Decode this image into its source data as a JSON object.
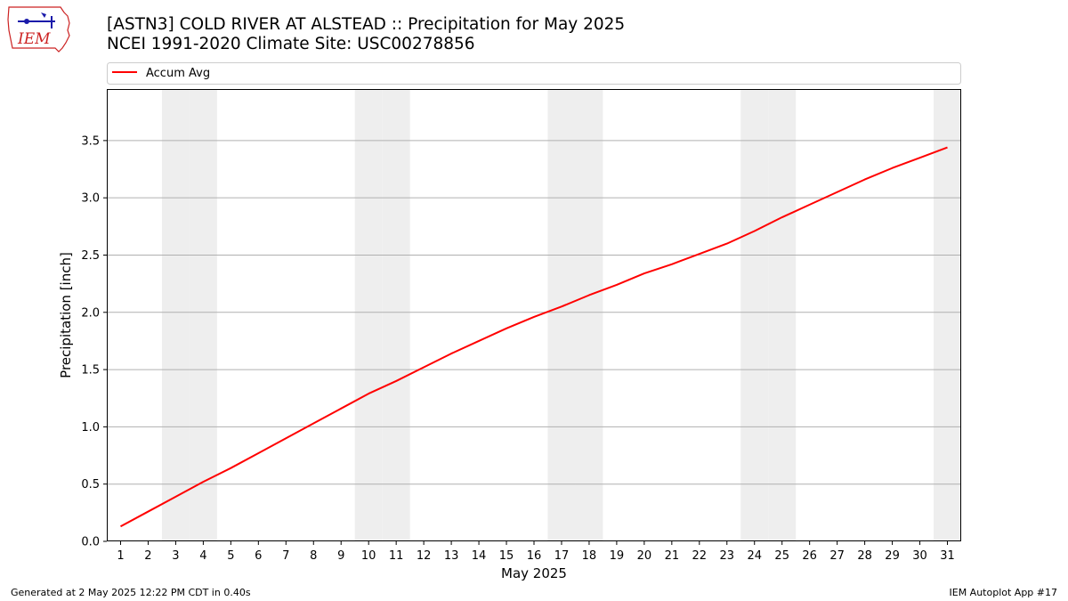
{
  "header": {
    "title_line1": "[ASTN3] COLD RIVER AT ALSTEAD :: Precipitation for May 2025",
    "title_line2": "NCEI 1991-2020 Climate Site: USC00278856",
    "logo_text": "IEM",
    "logo_icon": "iowa-state-outline-logo"
  },
  "footer": {
    "left": "Generated at 2 May 2025 12:22 PM CDT in 0.40s",
    "right": "IEM Autoplot App #17"
  },
  "colors": {
    "line": "#ff0000",
    "weekend_band": "#eeeeee",
    "grid": "#b0b0b0",
    "logo": "#cc2222"
  },
  "chart_data": {
    "type": "line",
    "xlabel": "May 2025",
    "ylabel": "Precipitation [inch]",
    "xlim": [
      0.5,
      31.5
    ],
    "ylim": [
      0,
      3.95
    ],
    "yticks": [
      0.0,
      0.5,
      1.0,
      1.5,
      2.0,
      2.5,
      3.0,
      3.5
    ],
    "ytick_labels": [
      "0.0",
      "0.5",
      "1.0",
      "1.5",
      "2.0",
      "2.5",
      "3.0",
      "3.5"
    ],
    "x": [
      1,
      2,
      3,
      4,
      5,
      6,
      7,
      8,
      9,
      10,
      11,
      12,
      13,
      14,
      15,
      16,
      17,
      18,
      19,
      20,
      21,
      22,
      23,
      24,
      25,
      26,
      27,
      28,
      29,
      30,
      31
    ],
    "xtick_labels": [
      "1",
      "2",
      "3",
      "4",
      "5",
      "6",
      "7",
      "8",
      "9",
      "10",
      "11",
      "12",
      "13",
      "14",
      "15",
      "16",
      "17",
      "18",
      "19",
      "20",
      "21",
      "22",
      "23",
      "24",
      "25",
      "26",
      "27",
      "28",
      "29",
      "30",
      "31"
    ],
    "grid": "y",
    "legend_position": "top",
    "weekend_days": [
      3,
      4,
      10,
      11,
      17,
      18,
      24,
      25,
      31
    ],
    "series": [
      {
        "name": "Accum Avg",
        "values": [
          0.13,
          0.26,
          0.39,
          0.52,
          0.64,
          0.77,
          0.9,
          1.03,
          1.16,
          1.29,
          1.4,
          1.52,
          1.64,
          1.75,
          1.86,
          1.96,
          2.05,
          2.15,
          2.24,
          2.34,
          2.42,
          2.51,
          2.6,
          2.71,
          2.83,
          2.94,
          3.05,
          3.16,
          3.26,
          3.35,
          3.44
        ]
      }
    ]
  }
}
